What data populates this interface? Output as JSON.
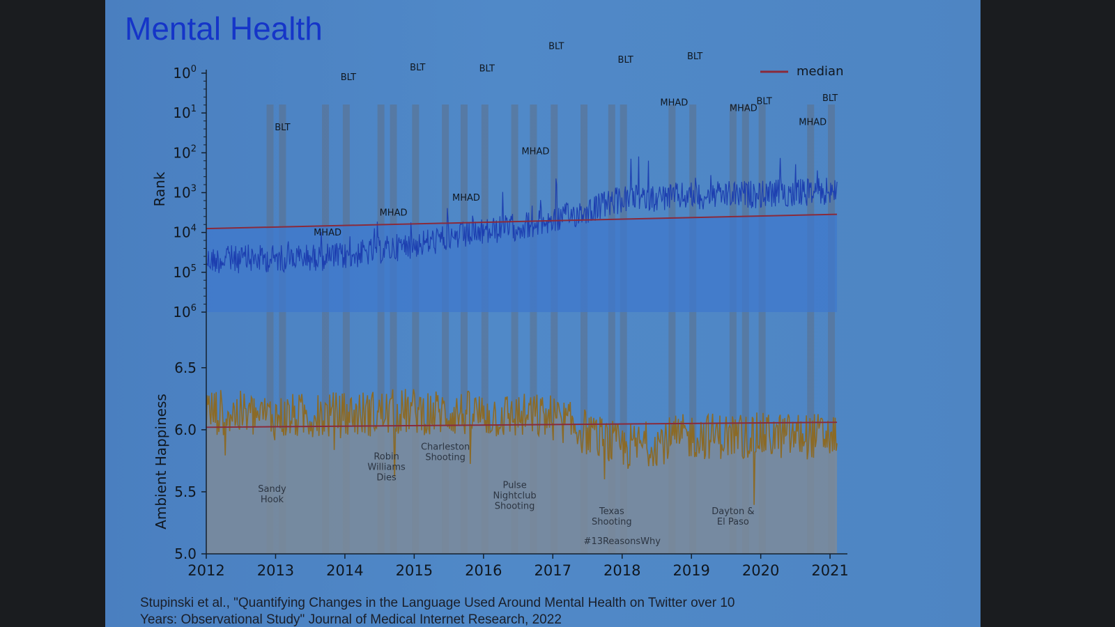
{
  "slide": {
    "title": "Mental Health",
    "citation_line1": "Stupinski et al., \"Quantifying Changes in the Language Used Around Mental Health on Twitter over 10",
    "citation_line2": "Years: Observational Study\" Journal of Medical Internet Research, 2022"
  },
  "colors": {
    "rank_line": "#1d3fb0",
    "rank_fill": "#3f78cc",
    "happiness_line": "#8b6a26",
    "happiness_fill": "#7d8b9a",
    "median": "#8a2a3a",
    "event_bar": "#5c6f88",
    "axis": "#15202c"
  },
  "chart_data": [
    {
      "type": "line",
      "ylabel": "Rank",
      "y_scale": "log",
      "y_inverted": true,
      "ylim": [
        1000000,
        1
      ],
      "ytick_labels": [
        [
          "10",
          "0"
        ],
        [
          "10",
          "1"
        ],
        [
          "10",
          "2"
        ],
        [
          "10",
          "3"
        ],
        [
          "10",
          "4"
        ],
        [
          "10",
          "5"
        ],
        [
          "10",
          "6"
        ]
      ],
      "legend": {
        "label": "median",
        "placement": "top-right"
      },
      "series": [
        {
          "name": "median",
          "x": [
            2012.0,
            2021.1
          ],
          "y": [
            8000,
            3500
          ]
        }
      ],
      "rank_trend": {
        "x": [
          2012.0,
          2013.0,
          2014.0,
          2015.0,
          2016.0,
          2017.0,
          2018.0,
          2019.0,
          2020.0,
          2021.1
        ],
        "y": [
          50000,
          45000,
          40000,
          20000,
          10000,
          5000,
          1500,
          1200,
          1100,
          900
        ]
      },
      "peak_labels": [
        {
          "text": "BLT",
          "x": 2013.1,
          "y": 27
        },
        {
          "text": "MHAD",
          "x": 2013.75,
          "y": 12000
        },
        {
          "text": "BLT",
          "x": 2014.05,
          "y": 1.5
        },
        {
          "text": "MHAD",
          "x": 2014.7,
          "y": 3800
        },
        {
          "text": "BLT",
          "x": 2015.05,
          "y": 0.85
        },
        {
          "text": "MHAD",
          "x": 2015.75,
          "y": 1600
        },
        {
          "text": "BLT",
          "x": 2016.05,
          "y": 0.9
        },
        {
          "text": "MHAD",
          "x": 2016.75,
          "y": 110
        },
        {
          "text": "BLT",
          "x": 2017.05,
          "y": 0.25
        },
        {
          "text": "BLT",
          "x": 2018.05,
          "y": 0.55
        },
        {
          "text": "MHAD",
          "x": 2018.75,
          "y": 6.5
        },
        {
          "text": "BLT",
          "x": 2019.05,
          "y": 0.45
        },
        {
          "text": "MHAD",
          "x": 2019.75,
          "y": 9
        },
        {
          "text": "BLT",
          "x": 2020.05,
          "y": 6
        },
        {
          "text": "MHAD",
          "x": 2020.75,
          "y": 20
        },
        {
          "text": "BLT",
          "x": 2021.0,
          "y": 5
        }
      ]
    },
    {
      "type": "line",
      "ylabel": "Ambient Happiness",
      "ylim": [
        5.0,
        6.6
      ],
      "yticks": [
        "5.0",
        "5.5",
        "6.0",
        "6.5"
      ],
      "xlim": [
        2012.0,
        2021.2
      ],
      "xticks": [
        "2012",
        "2013",
        "2014",
        "2015",
        "2016",
        "2017",
        "2018",
        "2019",
        "2020",
        "2021"
      ],
      "series": [
        {
          "name": "median",
          "x": [
            2012.0,
            2021.1
          ],
          "y": [
            6.02,
            6.06
          ]
        }
      ],
      "happiness_trend": {
        "x": [
          2012.0,
          2013.0,
          2014.0,
          2015.0,
          2016.0,
          2017.0,
          2018.0,
          2019.0,
          2020.0,
          2021.1
        ],
        "y": [
          6.15,
          6.1,
          6.12,
          6.15,
          6.12,
          6.1,
          5.85,
          5.95,
          5.95,
          5.95
        ]
      },
      "event_labels": [
        {
          "lines": [
            "Sandy",
            "Hook"
          ],
          "x": 2012.95,
          "y": 5.5
        },
        {
          "lines": [
            "Robin",
            "Williams",
            "Dies"
          ],
          "x": 2014.6,
          "y": 5.76
        },
        {
          "lines": [
            "Charleston",
            "Shooting"
          ],
          "x": 2015.45,
          "y": 5.84
        },
        {
          "lines": [
            "Pulse",
            "Nightclub",
            "Shooting"
          ],
          "x": 2016.45,
          "y": 5.53
        },
        {
          "lines": [
            "Texas",
            "Shooting"
          ],
          "x": 2017.85,
          "y": 5.32
        },
        {
          "lines": [
            "#13ReasonsWhy"
          ],
          "x": 2018.0,
          "y": 5.08
        },
        {
          "lines": [
            "Dayton &",
            "El Paso"
          ],
          "x": 2019.6,
          "y": 5.32
        }
      ]
    }
  ],
  "event_bars_x": [
    2012.92,
    2013.1,
    2013.72,
    2014.02,
    2014.52,
    2014.7,
    2015.02,
    2015.45,
    2015.72,
    2016.02,
    2016.45,
    2016.72,
    2017.02,
    2017.45,
    2017.85,
    2018.02,
    2018.72,
    2019.02,
    2019.6,
    2019.78,
    2020.02,
    2020.72,
    2021.02
  ]
}
